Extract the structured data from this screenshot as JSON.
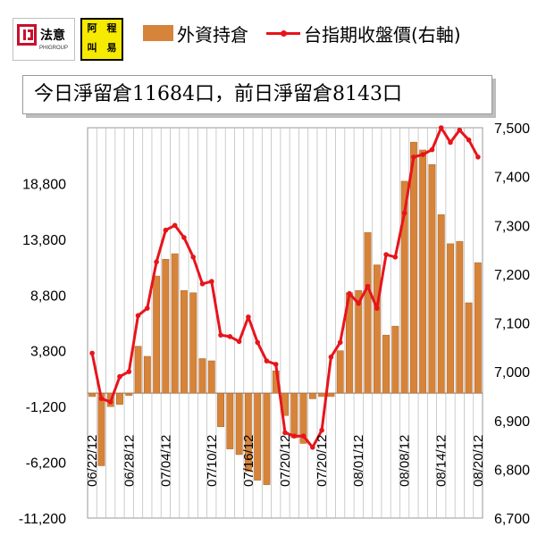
{
  "logo": {
    "brand_name": "法意",
    "brand_sub": "PHIGROUP",
    "badge_chars": [
      "阿",
      "程",
      "叫",
      "易"
    ]
  },
  "legend": {
    "bar_label": "外資持倉",
    "line_label": "台指期收盤價(右軸)"
  },
  "note_text": "今日淨留倉11684口，前日淨留倉8143口",
  "colors": {
    "bar": "#d6843a",
    "bar_edge": "#b86a2a",
    "line": "#e8141b",
    "plot_bg": "#ffffff",
    "grid": "#c0c0c0"
  },
  "chart_data": {
    "type": "bar",
    "y_left_ticks": [
      "18,800",
      "13,800",
      "8,800",
      "3,800",
      "-1,200",
      "-6,200",
      "-11,200"
    ],
    "y_left_range": [
      -11200,
      23800
    ],
    "y_right_ticks": [
      "7,500",
      "7,400",
      "7,300",
      "7,200",
      "7,100",
      "7,000",
      "6,900",
      "6,800",
      "6,700"
    ],
    "y_right_range": [
      6700,
      7500
    ],
    "x_tick_labels": [
      "06/22/12",
      "06/28/12",
      "07/04/12",
      "07/10/12",
      "07/16/12",
      "07/20/12",
      "07/20/12",
      "08/01/12",
      "08/08/12",
      "08/14/12",
      "08/20/12"
    ],
    "series": [
      {
        "name": "外資持倉",
        "type": "bar",
        "axis": "left",
        "values": [
          -300,
          -6500,
          -1200,
          -1000,
          -200,
          4200,
          3300,
          10500,
          12000,
          12500,
          9200,
          9000,
          3100,
          2900,
          -3000,
          -5000,
          -5500,
          -7000,
          -7800,
          -8200,
          2000,
          -2000,
          -4000,
          -4500,
          -500,
          -300,
          -300,
          3800,
          9000,
          9200,
          14400,
          11500,
          5200,
          6000,
          19000,
          22500,
          21800,
          20500,
          16000,
          13400,
          13600,
          8100,
          11700
        ]
      },
      {
        "name": "台指期收盤價(右軸)",
        "type": "line",
        "axis": "right",
        "values": [
          7038,
          6945,
          6938,
          6990,
          7000,
          7115,
          7130,
          7225,
          7290,
          7300,
          7275,
          7235,
          7180,
          7185,
          7075,
          7072,
          7062,
          7112,
          7060,
          7022,
          7015,
          6875,
          6868,
          6868,
          6845,
          6880,
          7030,
          7060,
          7160,
          7140,
          7175,
          7130,
          7240,
          7235,
          7325,
          7440,
          7445,
          7455,
          7500,
          7470,
          7495,
          7475,
          7440
        ]
      }
    ]
  }
}
